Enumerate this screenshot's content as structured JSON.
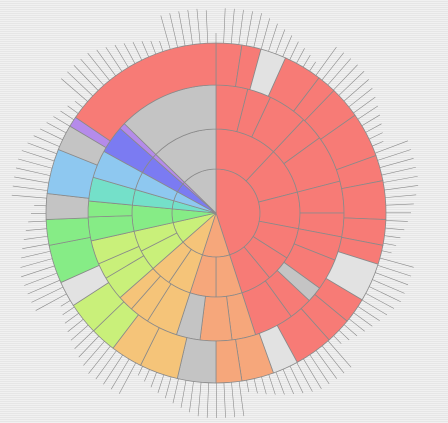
{
  "chart_data": {
    "type": "sunburst",
    "title": "",
    "grid": false,
    "legend": "none",
    "base_colors": {
      "red": "#f77b76",
      "orange": "#f6a77b",
      "yellow": "#f5c479",
      "lime": "#c9f07a",
      "green": "#86ec86",
      "teal": "#74e0c9",
      "blue": "#8ec8f0",
      "indigo": "#7b7bf2",
      "violet": "#b58bea",
      "grey": "#c4c4c4",
      "light": "#e2e2e2",
      "outline": "#8a8a8a"
    },
    "rings": [
      {
        "level": 1,
        "segments": [
          {
            "value": 45.0,
            "color": "red"
          },
          {
            "value": 10.0,
            "color": "orange"
          },
          {
            "value": 8.5,
            "color": "yellow"
          },
          {
            "value": 8.0,
            "color": "lime"
          },
          {
            "value": 5.0,
            "color": "green"
          },
          {
            "value": 3.0,
            "color": "teal"
          },
          {
            "value": 3.5,
            "color": "blue"
          },
          {
            "value": 3.5,
            "color": "indigo"
          },
          {
            "value": 0.8,
            "color": "violet"
          },
          {
            "value": 12.7,
            "color": "grey"
          }
        ]
      },
      {
        "level": 2,
        "segments": [
          {
            "value": 12.0,
            "color": "red"
          },
          {
            "value": 9.0,
            "color": "red"
          },
          {
            "value": 7.0,
            "color": "red"
          },
          {
            "value": 6.0,
            "color": "red"
          },
          {
            "value": 5.0,
            "color": "red"
          },
          {
            "value": 6.0,
            "color": "red"
          },
          {
            "value": 5.0,
            "color": "orange"
          },
          {
            "value": 5.0,
            "color": "orange"
          },
          {
            "value": 4.5,
            "color": "yellow"
          },
          {
            "value": 4.0,
            "color": "yellow"
          },
          {
            "value": 4.0,
            "color": "lime"
          },
          {
            "value": 4.0,
            "color": "lime"
          },
          {
            "value": 5.0,
            "color": "green"
          },
          {
            "value": 3.0,
            "color": "teal"
          },
          {
            "value": 3.5,
            "color": "blue"
          },
          {
            "value": 3.5,
            "color": "indigo"
          },
          {
            "value": 0.8,
            "color": "violet"
          },
          {
            "value": 12.7,
            "color": "grey"
          }
        ]
      },
      {
        "level": 3,
        "segments": [
          {
            "value": 4.0,
            "color": "red"
          },
          {
            "value": 3.0,
            "color": "red"
          },
          {
            "value": 5.0,
            "color": "red"
          },
          {
            "value": 3.0,
            "color": "red"
          },
          {
            "value": 6.0,
            "color": "red"
          },
          {
            "value": 4.0,
            "color": "red"
          },
          {
            "value": 3.0,
            "color": "red"
          },
          {
            "value": 3.0,
            "color": "red"
          },
          {
            "value": 4.0,
            "color": "red"
          },
          {
            "value": 2.0,
            "color": "grey"
          },
          {
            "value": 3.0,
            "color": "red"
          },
          {
            "value": 5.0,
            "color": "red"
          },
          {
            "value": 3.0,
            "color": "orange"
          },
          {
            "value": 4.0,
            "color": "orange"
          },
          {
            "value": 3.0,
            "color": "grey"
          },
          {
            "value": 4.0,
            "color": "yellow"
          },
          {
            "value": 2.5,
            "color": "yellow"
          },
          {
            "value": 2.0,
            "color": "yellow"
          },
          {
            "value": 3.0,
            "color": "lime"
          },
          {
            "value": 2.0,
            "color": "lime"
          },
          {
            "value": 3.0,
            "color": "lime"
          },
          {
            "value": 3.0,
            "color": "green"
          },
          {
            "value": 2.0,
            "color": "green"
          },
          {
            "value": 3.0,
            "color": "teal"
          },
          {
            "value": 3.5,
            "color": "blue"
          },
          {
            "value": 3.5,
            "color": "indigo"
          },
          {
            "value": 0.8,
            "color": "violet"
          },
          {
            "value": 12.7,
            "color": "grey"
          }
        ]
      },
      {
        "level": 4,
        "segments": [
          {
            "value": 2.0,
            "color": "red"
          },
          {
            "value": 1.5,
            "color": "red"
          },
          {
            "value": 2.0,
            "color": "light"
          },
          {
            "value": 3.0,
            "color": "red"
          },
          {
            "value": 1.5,
            "color": "red"
          },
          {
            "value": 2.5,
            "color": "red"
          },
          {
            "value": 3.5,
            "color": "red"
          },
          {
            "value": 2.0,
            "color": "red"
          },
          {
            "value": 3.0,
            "color": "red"
          },
          {
            "value": 2.0,
            "color": "red"
          },
          {
            "value": 1.5,
            "color": "red"
          },
          {
            "value": 3.0,
            "color": "light"
          },
          {
            "value": 2.0,
            "color": "red"
          },
          {
            "value": 2.0,
            "color": "red"
          },
          {
            "value": 3.0,
            "color": "red"
          },
          {
            "value": 2.0,
            "color": "light"
          },
          {
            "value": 2.5,
            "color": "orange"
          },
          {
            "value": 2.0,
            "color": "orange"
          },
          {
            "value": 3.0,
            "color": "grey"
          },
          {
            "value": 3.0,
            "color": "yellow"
          },
          {
            "value": 2.5,
            "color": "yellow"
          },
          {
            "value": 2.0,
            "color": "lime"
          },
          {
            "value": 2.5,
            "color": "lime"
          },
          {
            "value": 2.0,
            "color": "light"
          },
          {
            "value": 3.0,
            "color": "green"
          },
          {
            "value": 2.0,
            "color": "green"
          },
          {
            "value": 2.0,
            "color": "grey"
          },
          {
            "value": 3.5,
            "color": "blue"
          },
          {
            "value": 2.0,
            "color": "grey"
          },
          {
            "value": 0.8,
            "color": "violet"
          },
          {
            "value": 12.7,
            "color": "red"
          }
        ]
      }
    ]
  }
}
